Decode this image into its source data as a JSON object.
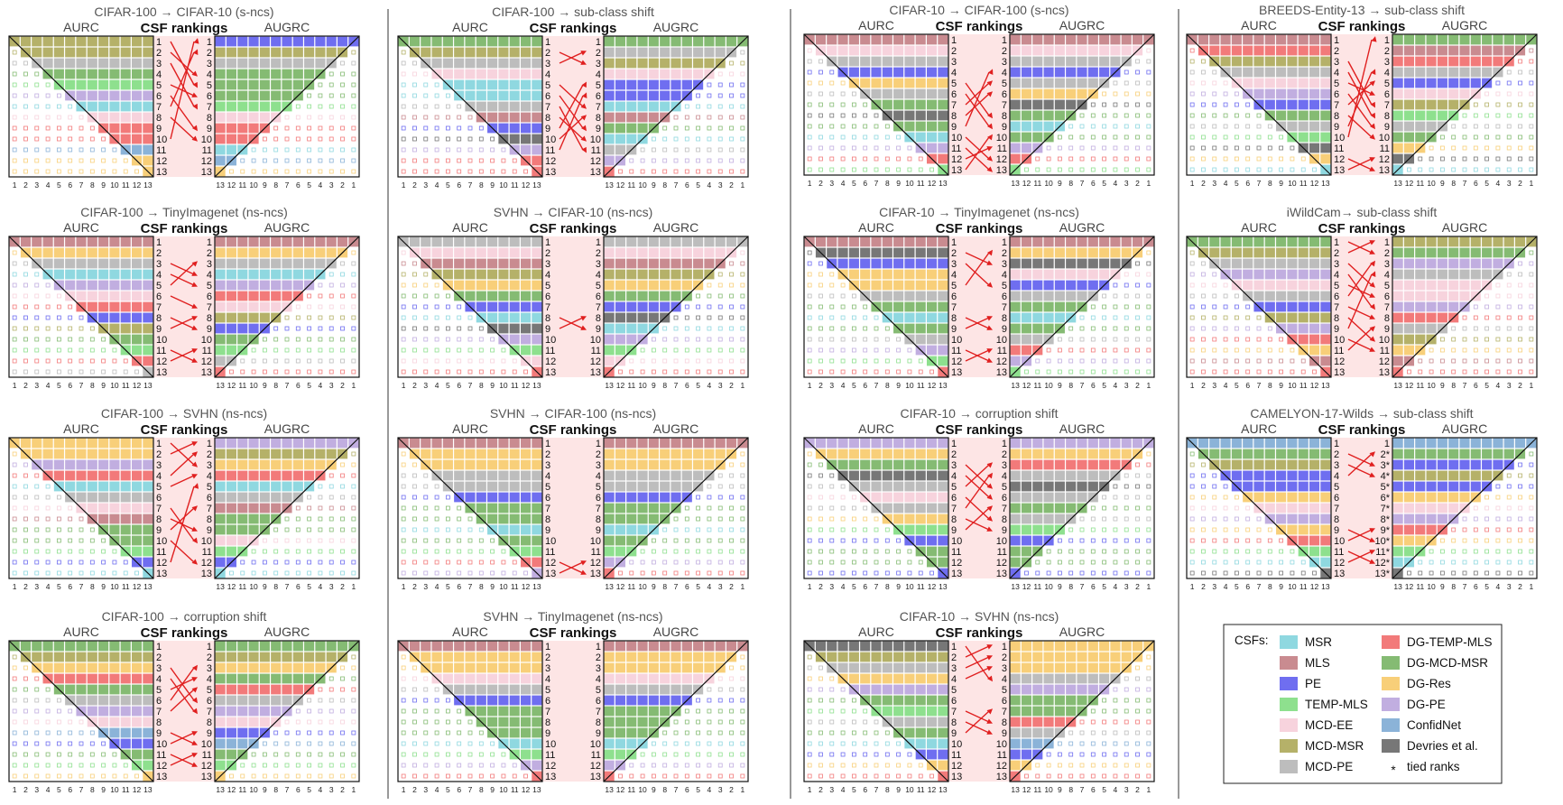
{
  "colors": {
    "MSR": "#8fd8e0",
    "MLS": "#c98b90",
    "PE": "#6f6ef0",
    "TEMP-MLS": "#8ee08e",
    "MCD-EE": "#f7d3dd",
    "MCD-MSR": "#b5b169",
    "MCD-PE": "#bdbdbd",
    "DG-TEMP-MLS": "#f27a7a",
    "DG-MCD-MSR": "#85bb73",
    "DG-Res": "#f8cf79",
    "DG-PE": "#c1aee0",
    "ConfidNet": "#8bb3d8",
    "Devries et al.": "#777777",
    "arrow": "#e02020",
    "band": "#fde5e5"
  },
  "legend": {
    "title": "CSFs:",
    "items": [
      {
        "label": "MSR",
        "key": "MSR"
      },
      {
        "label": "MLS",
        "key": "MLS"
      },
      {
        "label": "PE",
        "key": "PE"
      },
      {
        "label": "TEMP-MLS",
        "key": "TEMP-MLS"
      },
      {
        "label": "MCD-EE",
        "key": "MCD-EE"
      },
      {
        "label": "MCD-MSR",
        "key": "MCD-MSR"
      },
      {
        "label": "MCD-PE",
        "key": "MCD-PE"
      },
      {
        "label": "DG-TEMP-MLS",
        "key": "DG-TEMP-MLS"
      },
      {
        "label": "DG-MCD-MSR",
        "key": "DG-MCD-MSR"
      },
      {
        "label": "DG-Res",
        "key": "DG-Res"
      },
      {
        "label": "DG-PE",
        "key": "DG-PE"
      },
      {
        "label": "ConfidNet",
        "key": "ConfidNet"
      },
      {
        "label": "Devries et al.",
        "key": "Devries et al."
      }
    ],
    "tied_symbol": "*",
    "tied_label": "tied ranks"
  },
  "chart_data": {
    "type": "heatmap",
    "header_left": "AURC",
    "header_center": "CSF rankings",
    "header_right": "AUGRC",
    "ranks": [
      1,
      2,
      3,
      4,
      5,
      6,
      7,
      8,
      9,
      10,
      11,
      12,
      13
    ],
    "left_ticks": [
      "1",
      "2",
      "3",
      "4",
      "5",
      "6",
      "7",
      "8",
      "9",
      "10",
      "11",
      "12",
      "13"
    ],
    "right_ticks": [
      "13",
      "12",
      "11",
      "10",
      "9",
      "8",
      "7",
      "6",
      "5",
      "4",
      "3",
      "2",
      "1"
    ],
    "panels": [
      {
        "title": "CIFAR-100 → CIFAR-10 (s-ncs)",
        "aurc": [
          "MCD-MSR",
          "MCD-MSR",
          "MCD-PE",
          "DG-MCD-MSR",
          "TEMP-MLS",
          "DG-PE",
          "MSR",
          "MCD-EE",
          "DG-TEMP-MLS",
          "DG-TEMP-MLS",
          "ConfidNet",
          "DG-Res",
          "DG-Res"
        ],
        "augrc": [
          "PE",
          "MCD-MSR",
          "MCD-PE",
          "DG-MCD-MSR",
          "DG-MCD-MSR",
          "DG-MCD-MSR",
          "TEMP-MLS",
          "MCD-EE",
          "DG-TEMP-MLS",
          "DG-TEMP-MLS",
          "MSR",
          "ConfidNet",
          "DG-Res"
        ],
        "arrows": [
          [
            1,
            5
          ],
          [
            2,
            4
          ],
          [
            3,
            7
          ],
          [
            5,
            6
          ],
          [
            6,
            9
          ],
          [
            7,
            2
          ],
          [
            8,
            10
          ],
          [
            10,
            1
          ]
        ],
        "tied": []
      },
      {
        "title": "CIFAR-100 → TinyImagenet (ns-ncs)",
        "aurc": [
          "MLS",
          "DG-Res",
          "MCD-PE",
          "MSR",
          "DG-PE",
          "MCD-EE",
          "DG-TEMP-MLS",
          "PE",
          "MCD-MSR",
          "DG-MCD-MSR",
          "TEMP-MLS",
          "DG-TEMP-MLS",
          "MCD-PE"
        ],
        "augrc": [
          "MLS",
          "DG-Res",
          "MCD-PE",
          "MSR",
          "DG-PE",
          "DG-TEMP-MLS",
          "MCD-EE",
          "MCD-MSR",
          "PE",
          "DG-MCD-MSR",
          "TEMP-MLS",
          "MCD-PE",
          "DG-TEMP-MLS"
        ],
        "arrows": [
          [
            3,
            4
          ],
          [
            4,
            5
          ],
          [
            5,
            3
          ],
          [
            6,
            7
          ],
          [
            8,
            9
          ],
          [
            9,
            8
          ],
          [
            11,
            12
          ],
          [
            12,
            11
          ]
        ],
        "tied": []
      },
      {
        "title": "CIFAR-100 → SVHN (ns-ncs)",
        "aurc": [
          "DG-Res",
          "DG-Res",
          "DG-PE",
          "DG-TEMP-MLS",
          "MSR",
          "MCD-PE",
          "MCD-EE",
          "MLS",
          "DG-MCD-MSR",
          "DG-MCD-MSR",
          "TEMP-MLS",
          "PE",
          "MSR"
        ],
        "augrc": [
          "DG-PE",
          "MCD-MSR",
          "DG-Res",
          "DG-TEMP-MLS",
          "MSR",
          "MCD-PE",
          "MLS",
          "DG-MCD-MSR",
          "DG-MCD-MSR",
          "MCD-EE",
          "TEMP-MLS",
          "PE",
          "MSR"
        ],
        "arrows": [
          [
            1,
            3
          ],
          [
            2,
            1
          ],
          [
            4,
            2
          ],
          [
            5,
            4
          ],
          [
            7,
            10
          ],
          [
            8,
            9
          ],
          [
            9,
            7
          ],
          [
            10,
            12
          ],
          [
            12,
            5
          ]
        ],
        "tied": []
      },
      {
        "title": "CIFAR-100 → corruption shift",
        "aurc": [
          "DG-MCD-MSR",
          "MCD-MSR",
          "DG-Res",
          "DG-TEMP-MLS",
          "DG-MCD-MSR",
          "MCD-PE",
          "DG-PE",
          "MCD-EE",
          "ConfidNet",
          "PE",
          "DG-MCD-MSR",
          "TEMP-MLS",
          "DG-Res"
        ],
        "augrc": [
          "DG-MCD-MSR",
          "MCD-MSR",
          "DG-Res",
          "DG-MCD-MSR",
          "DG-TEMP-MLS",
          "MCD-PE",
          "DG-PE",
          "MCD-EE",
          "PE",
          "ConfidNet",
          "DG-MCD-MSR",
          "TEMP-MLS",
          "DG-Res"
        ],
        "arrows": [
          [
            3,
            6
          ],
          [
            4,
            7
          ],
          [
            5,
            4
          ],
          [
            6,
            3
          ],
          [
            7,
            5
          ],
          [
            9,
            10
          ],
          [
            10,
            9
          ],
          [
            11,
            12
          ],
          [
            12,
            11
          ]
        ],
        "tied": []
      },
      {
        "title": "CIFAR-100 → sub-class shift",
        "aurc": [
          "DG-MCD-MSR",
          "MCD-MSR",
          "MCD-PE",
          "MCD-EE",
          "MSR",
          "MSR",
          "MCD-PE",
          "MLS",
          "PE",
          "Devries et al.",
          "DG-PE",
          "DG-TEMP-MLS",
          "DG-TEMP-MLS"
        ],
        "augrc": [
          "DG-MCD-MSR",
          "MCD-PE",
          "MCD-MSR",
          "MCD-EE",
          "PE",
          "PE",
          "MSR",
          "MLS",
          "DG-MCD-MSR",
          "MSR",
          "MCD-PE",
          "DG-PE",
          "DG-TEMP-MLS"
        ],
        "arrows": [
          [
            2,
            3
          ],
          [
            3,
            2
          ],
          [
            5,
            7
          ],
          [
            6,
            9
          ],
          [
            7,
            11
          ],
          [
            8,
            10
          ],
          [
            9,
            5
          ],
          [
            10,
            8
          ],
          [
            11,
            6
          ]
        ],
        "tied": []
      },
      {
        "title": "SVHN → CIFAR-10 (ns-ncs)",
        "aurc": [
          "MCD-PE",
          "MCD-EE",
          "MLS",
          "MCD-MSR",
          "DG-Res",
          "DG-MCD-MSR",
          "PE",
          "MSR",
          "Devries et al.",
          "DG-PE",
          "TEMP-MLS",
          "MCD-EE",
          "DG-TEMP-MLS"
        ],
        "augrc": [
          "MCD-PE",
          "MCD-EE",
          "MLS",
          "MCD-MSR",
          "DG-Res",
          "DG-MCD-MSR",
          "PE",
          "Devries et al.",
          "MSR",
          "DG-PE",
          "TEMP-MLS",
          "MCD-EE",
          "DG-TEMP-MLS"
        ],
        "arrows": [
          [
            8,
            9
          ],
          [
            9,
            8
          ]
        ],
        "tied": []
      },
      {
        "title": "SVHN → CIFAR-100 (ns-ncs)",
        "aurc": [
          "MLS",
          "DG-Res",
          "DG-Res",
          "MCD-PE",
          "MCD-PE",
          "PE",
          "DG-MCD-MSR",
          "DG-MCD-MSR",
          "MSR",
          "DG-MCD-MSR",
          "TEMP-MLS",
          "DG-TEMP-MLS",
          "DG-PE"
        ],
        "augrc": [
          "MLS",
          "DG-Res",
          "DG-Res",
          "MCD-PE",
          "MCD-PE",
          "PE",
          "DG-MCD-MSR",
          "DG-MCD-MSR",
          "MSR",
          "DG-MCD-MSR",
          "TEMP-MLS",
          "DG-PE",
          "DG-TEMP-MLS"
        ],
        "arrows": [
          [
            12,
            13
          ],
          [
            13,
            12
          ]
        ],
        "tied": []
      },
      {
        "title": "SVHN → TinyImagenet (ns-ncs)",
        "aurc": [
          "MLS",
          "DG-Res",
          "DG-Res",
          "MCD-EE",
          "MCD-PE",
          "PE",
          "DG-MCD-MSR",
          "DG-MCD-MSR",
          "DG-MCD-MSR",
          "MSR",
          "TEMP-MLS",
          "DG-PE",
          "DG-TEMP-MLS"
        ],
        "augrc": [
          "MLS",
          "DG-Res",
          "DG-Res",
          "MCD-EE",
          "MCD-PE",
          "PE",
          "DG-MCD-MSR",
          "DG-MCD-MSR",
          "DG-MCD-MSR",
          "MSR",
          "TEMP-MLS",
          "DG-PE",
          "DG-TEMP-MLS"
        ],
        "arrows": [],
        "tied": []
      },
      {
        "title": "CIFAR-10 → CIFAR-100 (s-ncs)",
        "aurc": [
          "MLS",
          "MCD-EE",
          "MCD-PE",
          "PE",
          "DG-Res",
          "MCD-PE",
          "DG-MCD-MSR",
          "Devries et al.",
          "DG-MCD-MSR",
          "MSR",
          "DG-PE",
          "DG-TEMP-MLS",
          "TEMP-MLS"
        ],
        "augrc": [
          "MLS",
          "MCD-EE",
          "MCD-PE",
          "PE",
          "MCD-PE",
          "DG-Res",
          "Devries et al.",
          "DG-MCD-MSR",
          "MSR",
          "DG-MCD-MSR",
          "DG-PE",
          "DG-TEMP-MLS",
          "TEMP-MLS"
        ],
        "arrows": [
          [
            5,
            8
          ],
          [
            6,
            9
          ],
          [
            7,
            5
          ],
          [
            8,
            6
          ],
          [
            9,
            4
          ],
          [
            10,
            12
          ],
          [
            11,
            13
          ],
          [
            12,
            11
          ],
          [
            13,
            10
          ]
        ],
        "tied": []
      },
      {
        "title": "CIFAR-10 → TinyImagenet (ns-ncs)",
        "aurc": [
          "MLS",
          "Devries et al.",
          "PE",
          "DG-Res",
          "DG-Res",
          "MCD-PE",
          "DG-MCD-MSR",
          "MSR",
          "DG-MCD-MSR",
          "MCD-PE",
          "DG-PE",
          "TEMP-MLS",
          "DG-TEMP-MLS"
        ],
        "augrc": [
          "MLS",
          "DG-Res",
          "Devries et al.",
          "MCD-EE",
          "PE",
          "MCD-PE",
          "DG-MCD-MSR",
          "MSR",
          "DG-MCD-MSR",
          "MCD-PE",
          "DG-TEMP-MLS",
          "DG-PE",
          "TEMP-MLS"
        ],
        "arrows": [
          [
            2,
            3
          ],
          [
            3,
            5
          ],
          [
            5,
            2
          ],
          [
            8,
            9
          ],
          [
            9,
            8
          ],
          [
            11,
            12
          ],
          [
            12,
            11
          ]
        ],
        "tied": []
      },
      {
        "title": "CIFAR-10 → corruption shift",
        "aurc": [
          "DG-PE",
          "DG-Res",
          "DG-MCD-MSR",
          "Devries et al.",
          "MCD-PE",
          "MCD-EE",
          "MCD-PE",
          "DG-Res",
          "TEMP-MLS",
          "PE",
          "DG-MCD-MSR",
          "DG-MCD-MSR",
          "PE"
        ],
        "augrc": [
          "DG-PE",
          "DG-Res",
          "DG-TEMP-MLS",
          "MCD-PE",
          "Devries et al.",
          "MCD-PE",
          "DG-MCD-MSR",
          "MCD-PE",
          "TEMP-MLS",
          "PE",
          "DG-MCD-MSR",
          "DG-MCD-MSR",
          "PE"
        ],
        "arrows": [
          [
            3,
            5
          ],
          [
            4,
            6
          ],
          [
            5,
            3
          ],
          [
            6,
            8
          ],
          [
            7,
            4
          ],
          [
            8,
            9
          ],
          [
            9,
            7
          ]
        ],
        "tied": []
      },
      {
        "title": "CIFAR-10 → SVHN (ns-ncs)",
        "aurc": [
          "Devries et al.",
          "MCD-MSR",
          "MCD-PE",
          "DG-Res",
          "DG-PE",
          "DG-MCD-MSR",
          "TEMP-MLS",
          "MCD-PE",
          "DG-MCD-MSR",
          "MSR",
          "PE",
          "DG-Res",
          "DG-TEMP-MLS"
        ],
        "augrc": [
          "DG-Res",
          "DG-Res",
          "DG-Res",
          "MCD-PE",
          "DG-PE",
          "DG-MCD-MSR",
          "DG-MCD-MSR",
          "DG-TEMP-MLS",
          "MCD-PE",
          "ConfidNet",
          "PE",
          "DG-Res",
          "DG-TEMP-MLS"
        ],
        "arrows": [
          [
            1,
            4
          ],
          [
            2,
            1
          ],
          [
            3,
            2
          ],
          [
            4,
            3
          ],
          [
            7,
            8
          ],
          [
            8,
            9
          ],
          [
            9,
            7
          ]
        ],
        "tied": []
      },
      {
        "title": "BREEDS-Entity-13 → sub-class shift",
        "aurc": [
          "MLS",
          "DG-TEMP-MLS",
          "MCD-MSR",
          "MCD-PE",
          "MCD-EE",
          "DG-PE",
          "PE",
          "DG-MCD-MSR",
          "MCD-PE",
          "TEMP-MLS",
          "Devries et al.",
          "DG-Res",
          "MSR"
        ],
        "augrc": [
          "DG-MCD-MSR",
          "MLS",
          "DG-TEMP-MLS",
          "MCD-PE",
          "PE",
          "MCD-EE",
          "MCD-MSR",
          "TEMP-MLS",
          "MCD-PE",
          "DG-MCD-MSR",
          "DG-Res",
          "Devries et al.",
          "MSR"
        ],
        "arrows": [
          [
            3,
            7
          ],
          [
            4,
            8
          ],
          [
            5,
            6
          ],
          [
            6,
            9
          ],
          [
            7,
            5
          ],
          [
            8,
            10
          ],
          [
            9,
            4
          ],
          [
            10,
            1
          ],
          [
            12,
            13
          ],
          [
            13,
            12
          ]
        ],
        "tied": []
      },
      {
        "title": "iWildCam→ sub-class shift",
        "aurc": [
          "DG-MCD-MSR",
          "MCD-MSR",
          "MCD-PE",
          "DG-PE",
          "MCD-EE",
          "MCD-PE",
          "PE",
          "MCD-MSR",
          "DG-PE",
          "DG-TEMP-MLS",
          "DG-Res",
          "MLS",
          "DG-TEMP-MLS"
        ],
        "augrc": [
          "MCD-MSR",
          "DG-MCD-MSR",
          "DG-PE",
          "MCD-PE",
          "MCD-EE",
          "MCD-EE",
          "DG-PE",
          "DG-TEMP-MLS",
          "MCD-PE",
          "MCD-MSR",
          "DG-Res",
          "MLS",
          "DG-TEMP-MLS"
        ],
        "arrows": [
          [
            1,
            2
          ],
          [
            2,
            1
          ],
          [
            3,
            5
          ],
          [
            4,
            7
          ],
          [
            5,
            6
          ],
          [
            6,
            3
          ],
          [
            7,
            8
          ],
          [
            8,
            10
          ],
          [
            9,
            4
          ],
          [
            10,
            11
          ],
          [
            11,
            9
          ]
        ],
        "tied": []
      },
      {
        "title": "CAMELYON-17-Wilds → sub-class shift",
        "aurc": [
          "ConfidNet",
          "DG-MCD-MSR",
          "MCD-MSR",
          "PE",
          "PE",
          "DG-Res",
          "MCD-EE",
          "DG-PE",
          "DG-Res",
          "DG-TEMP-MLS",
          "TEMP-MLS",
          "MSR",
          "Devries et al."
        ],
        "augrc": [
          "ConfidNet",
          "DG-MCD-MSR",
          "PE",
          "MCD-MSR",
          "PE",
          "DG-Res",
          "MCD-EE",
          "DG-PE",
          "DG-TEMP-MLS",
          "DG-Res",
          "TEMP-MLS",
          "MSR",
          "Devries et al."
        ],
        "arrows": [
          [
            2,
            3
          ],
          [
            3,
            4
          ],
          [
            4,
            2
          ],
          [
            9,
            10
          ],
          [
            10,
            9
          ],
          [
            11,
            12
          ],
          [
            12,
            11
          ]
        ],
        "tied": [
          2,
          3,
          4,
          5,
          6,
          7,
          8,
          9,
          10,
          11,
          12,
          13
        ]
      }
    ]
  }
}
